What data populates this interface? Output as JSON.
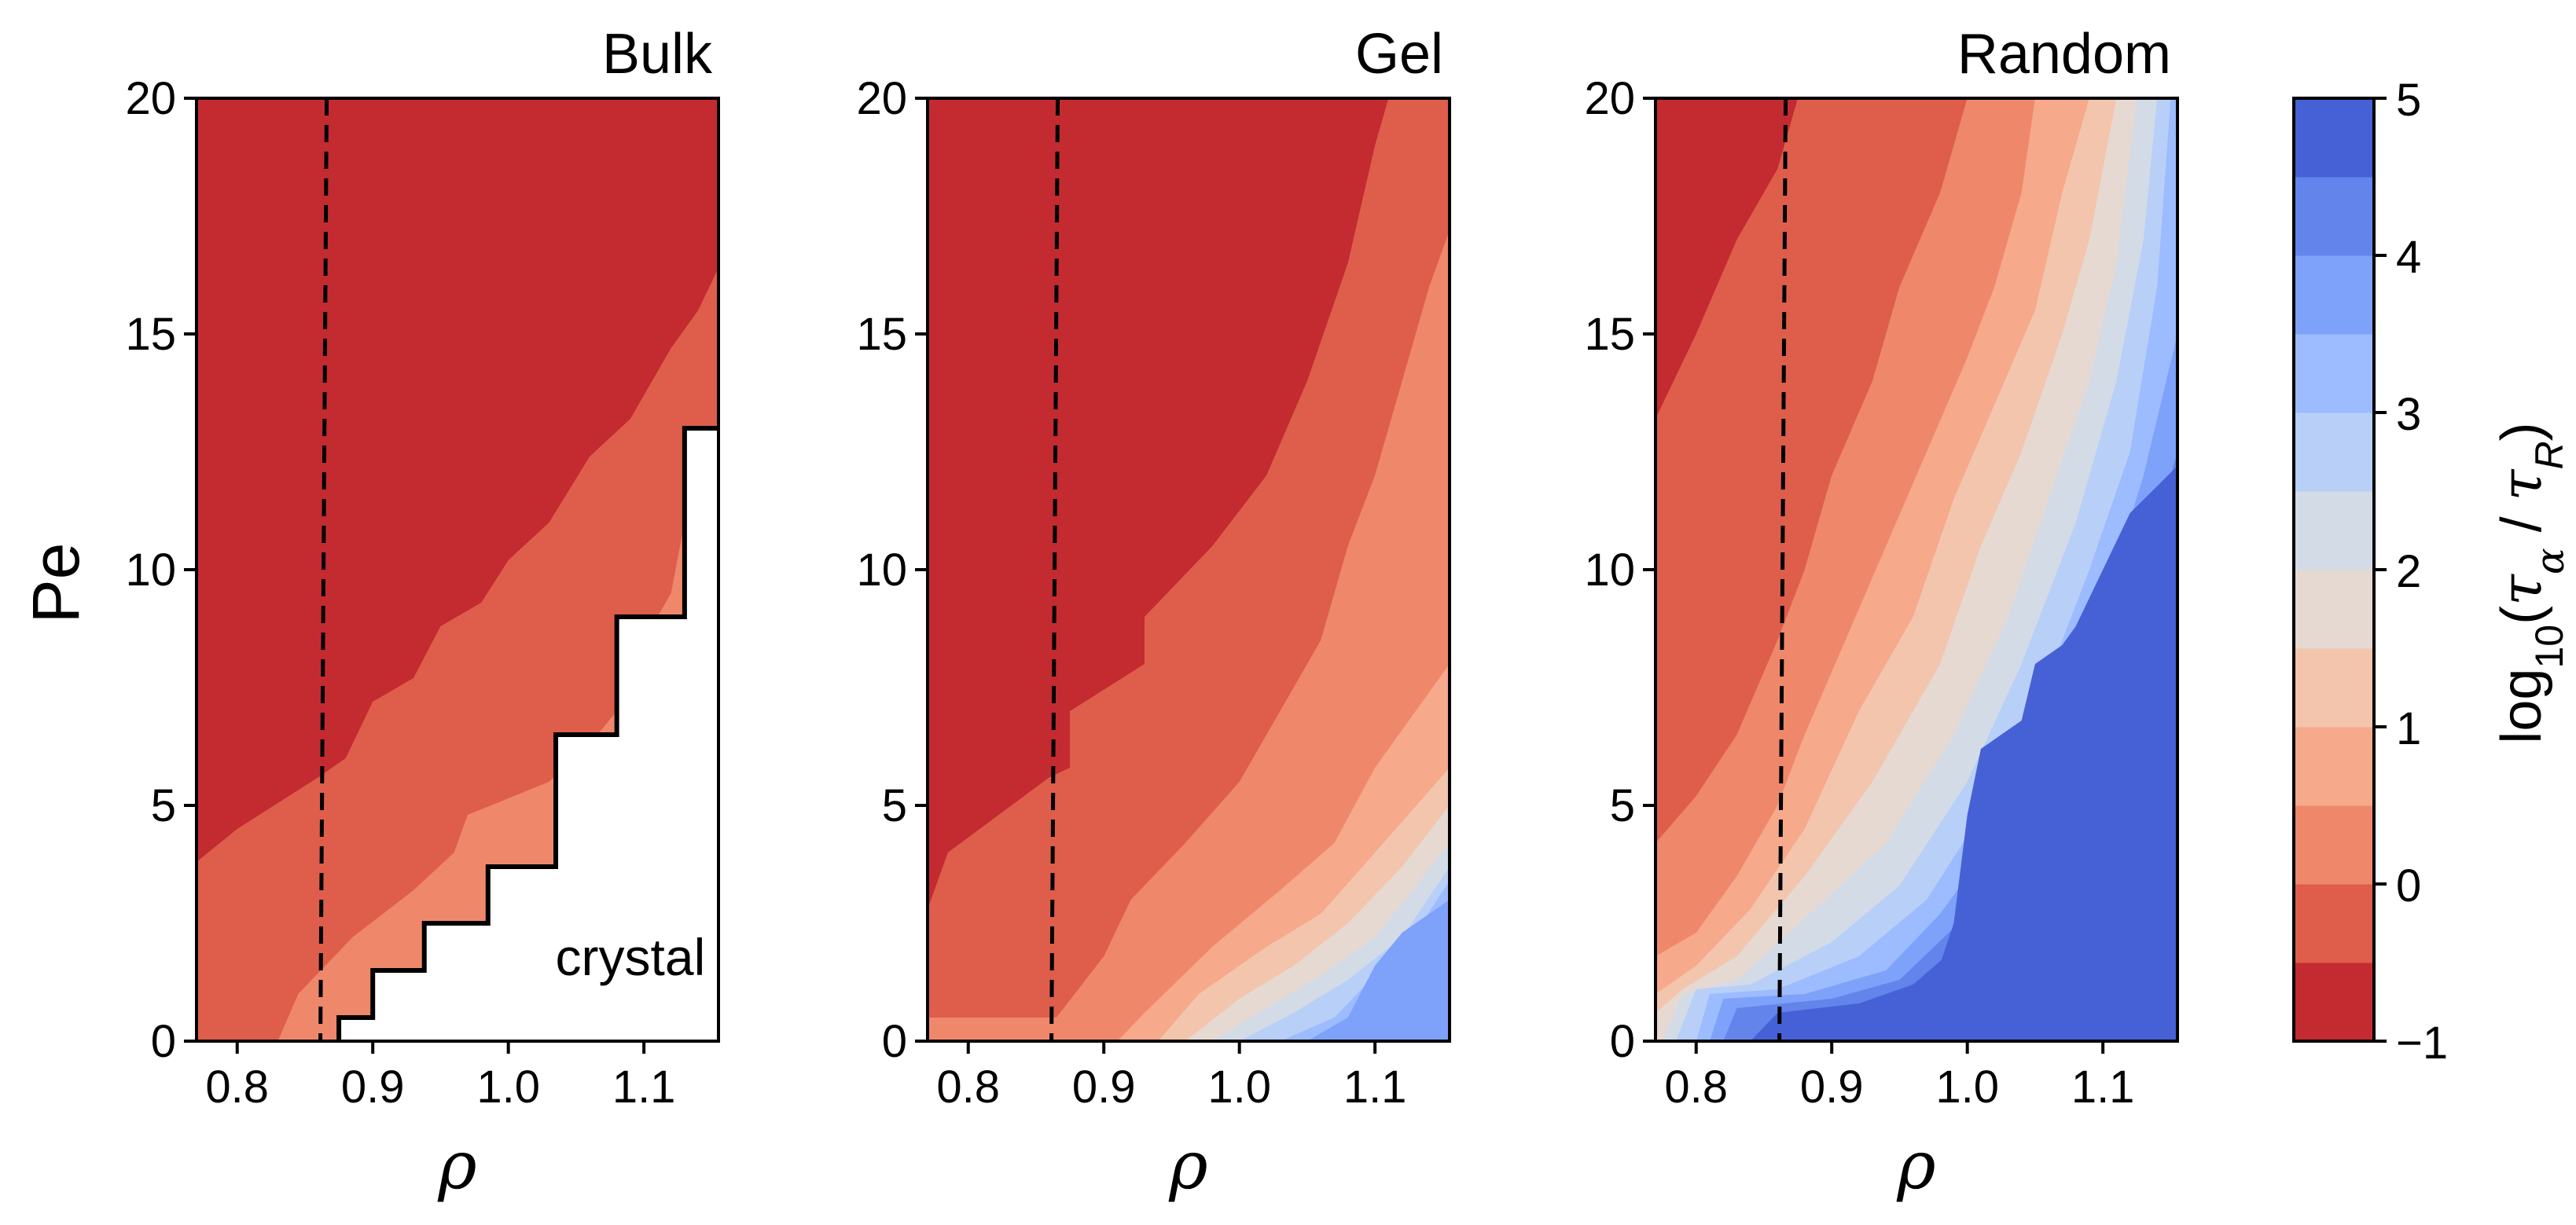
{
  "chart_data": {
    "type": "contour",
    "ylabel": "Pe",
    "xlabel": "ρ",
    "xlim": [
      0.77,
      1.155
    ],
    "ylim": [
      0,
      20
    ],
    "xticks": [
      "0.8",
      "0.9",
      "1.0",
      "1.1"
    ],
    "xtick_values": [
      0.8,
      0.9,
      1.0,
      1.1
    ],
    "yticks": [
      "0",
      "5",
      "10",
      "15",
      "20"
    ],
    "ytick_values": [
      0,
      5,
      10,
      15,
      20
    ],
    "dashed_line_rho": 0.866,
    "colorbar": {
      "label_text": "log10(τα / τR)",
      "ticks": [
        "−1",
        "0",
        "1",
        "2",
        "3",
        "4",
        "5"
      ],
      "tick_values": [
        -1,
        0,
        1,
        2,
        3,
        4,
        5
      ],
      "levels": [
        -1,
        -0.5,
        0,
        0.5,
        1,
        1.5,
        2,
        2.5,
        3,
        3.5,
        4,
        4.5,
        5
      ],
      "colors": [
        "#c32b30",
        "#de5e4b",
        "#ef886b",
        "#f6a98b",
        "#f3c5ad",
        "#e6d9d2",
        "#d3dbe7",
        "#b8cff8",
        "#9cbcff",
        "#7ea1fa",
        "#6384eb",
        "#4661d6"
      ]
    },
    "panels": [
      {
        "title": "Bulk",
        "annotation": "crystal",
        "crystal_boundary": [
          [
            0.875,
            0
          ],
          [
            0.875,
            0.5
          ],
          [
            0.9,
            0.5
          ],
          [
            0.9,
            1.5
          ],
          [
            0.938,
            1.5
          ],
          [
            0.938,
            2.5
          ],
          [
            0.985,
            2.5
          ],
          [
            0.985,
            3.7
          ],
          [
            1.035,
            3.7
          ],
          [
            1.035,
            6.5
          ],
          [
            1.08,
            6.5
          ],
          [
            1.08,
            9.0
          ],
          [
            1.13,
            9.0
          ],
          [
            1.13,
            13.0
          ],
          [
            1.155,
            13.0
          ]
        ],
        "boundaries": [
          [
            [
              0.77,
              3.8
            ],
            [
              0.8,
              4.5
            ],
            [
              0.86,
              5.6
            ],
            [
              0.88,
              6.0
            ],
            [
              0.9,
              7.2
            ],
            [
              0.93,
              7.7
            ],
            [
              0.95,
              8.8
            ],
            [
              0.98,
              9.3
            ],
            [
              1.0,
              10.2
            ],
            [
              1.03,
              11.0
            ],
            [
              1.06,
              12.4
            ],
            [
              1.09,
              13.2
            ],
            [
              1.12,
              14.7
            ],
            [
              1.14,
              15.5
            ],
            [
              1.155,
              16.4
            ]
          ],
          [
            [
              0.83,
              0
            ],
            [
              0.845,
              1.0
            ],
            [
              0.885,
              2.2
            ],
            [
              0.93,
              3.2
            ],
            [
              0.96,
              4.0
            ],
            [
              0.97,
              4.8
            ],
            [
              1.03,
              5.5
            ],
            [
              1.06,
              6.3
            ],
            [
              1.08,
              7.0
            ],
            [
              1.1,
              8.5
            ],
            [
              1.12,
              9.5
            ],
            [
              1.13,
              11.0
            ]
          ]
        ]
      },
      {
        "title": "Gel",
        "annotation": "",
        "boundaries": [
          [
            [
              0.77,
              2.8
            ],
            [
              0.785,
              4.0
            ],
            [
              0.86,
              5.6
            ],
            [
              0.875,
              5.8
            ],
            [
              0.875,
              7.0
            ],
            [
              0.93,
              8.0
            ],
            [
              0.93,
              9.0
            ],
            [
              0.98,
              10.5
            ],
            [
              1.02,
              12.0
            ],
            [
              1.05,
              14.0
            ],
            [
              1.08,
              16.5
            ],
            [
              1.1,
              19.0
            ],
            [
              1.11,
              20.0
            ]
          ],
          [
            [
              0.865,
              0.5
            ],
            [
              0.9,
              1.8
            ],
            [
              0.92,
              3.0
            ],
            [
              0.96,
              4.2
            ],
            [
              1.0,
              5.5
            ],
            [
              1.03,
              7.0
            ],
            [
              1.06,
              8.5
            ],
            [
              1.08,
              10.5
            ],
            [
              1.1,
              12.0
            ],
            [
              1.12,
              14.0
            ],
            [
              1.14,
              16.0
            ],
            [
              1.155,
              17.2
            ]
          ],
          [
            [
              0.91,
              0
            ],
            [
              0.93,
              0.6
            ],
            [
              0.98,
              2.0
            ],
            [
              1.03,
              3.2
            ],
            [
              1.07,
              4.2
            ],
            [
              1.1,
              5.8
            ],
            [
              1.155,
              8.0
            ]
          ],
          [
            [
              0.94,
              0
            ],
            [
              0.97,
              1.0
            ],
            [
              1.02,
              2.0
            ],
            [
              1.06,
              2.7
            ],
            [
              1.1,
              4.0
            ],
            [
              1.155,
              5.8
            ]
          ],
          [
            [
              0.96,
              0
            ],
            [
              1.0,
              0.9
            ],
            [
              1.04,
              1.6
            ],
            [
              1.08,
              2.5
            ],
            [
              1.12,
              3.7
            ],
            [
              1.155,
              5.0
            ]
          ],
          [
            [
              0.98,
              0
            ],
            [
              1.02,
              0.7
            ],
            [
              1.06,
              1.4
            ],
            [
              1.1,
              2.2
            ],
            [
              1.155,
              4.2
            ]
          ],
          [
            [
              1.0,
              0
            ],
            [
              1.04,
              0.6
            ],
            [
              1.08,
              1.3
            ],
            [
              1.12,
              2.2
            ],
            [
              1.155,
              3.7
            ]
          ],
          [
            [
              1.03,
              0
            ],
            [
              1.07,
              0.5
            ],
            [
              1.1,
              1.4
            ],
            [
              1.13,
              2.3
            ],
            [
              1.155,
              3.4
            ]
          ],
          [
            [
              1.05,
              0
            ],
            [
              1.08,
              0.5
            ],
            [
              1.1,
              1.6
            ],
            [
              1.12,
              2.3
            ],
            [
              1.155,
              3.0
            ]
          ]
        ]
      },
      {
        "title": "Random",
        "annotation": "",
        "boundaries": [
          [
            [
              0.77,
              13.2
            ],
            [
              0.8,
              15.0
            ],
            [
              0.83,
              17.0
            ],
            [
              0.86,
              18.5
            ],
            [
              0.875,
              20.0
            ]
          ],
          [
            [
              0.77,
              4.2
            ],
            [
              0.8,
              5.2
            ],
            [
              0.83,
              6.5
            ],
            [
              0.86,
              8.5
            ],
            [
              0.88,
              10.0
            ],
            [
              0.9,
              12.0
            ],
            [
              0.93,
              14.0
            ],
            [
              0.95,
              16.0
            ],
            [
              0.98,
              18.0
            ],
            [
              1.0,
              20.0
            ]
          ],
          [
            [
              0.77,
              1.8
            ],
            [
              0.8,
              2.3
            ],
            [
              0.83,
              3.5
            ],
            [
              0.86,
              5.0
            ],
            [
              0.88,
              6.5
            ],
            [
              0.91,
              8.5
            ],
            [
              0.94,
              10.5
            ],
            [
              0.97,
              12.5
            ],
            [
              1.0,
              14.5
            ],
            [
              1.02,
              16.0
            ],
            [
              1.04,
              18.0
            ],
            [
              1.05,
              20.0
            ]
          ],
          [
            [
              0.77,
              1.0
            ],
            [
              0.8,
              1.6
            ],
            [
              0.84,
              2.8
            ],
            [
              0.88,
              4.5
            ],
            [
              0.92,
              7.0
            ],
            [
              0.96,
              9.0
            ],
            [
              0.99,
              11.5
            ],
            [
              1.02,
              13.5
            ],
            [
              1.05,
              15.5
            ],
            [
              1.07,
              18.0
            ],
            [
              1.09,
              20.0
            ]
          ],
          [
            [
              0.77,
              0.6
            ],
            [
              0.79,
              1.1
            ],
            [
              0.83,
              1.8
            ],
            [
              0.88,
              3.5
            ],
            [
              0.93,
              5.5
            ],
            [
              0.98,
              8.0
            ],
            [
              1.01,
              10.5
            ],
            [
              1.04,
              12.5
            ],
            [
              1.07,
              15.0
            ],
            [
              1.09,
              17.0
            ],
            [
              1.11,
              20.0
            ]
          ],
          [
            [
              0.775,
              0
            ],
            [
              0.79,
              1.0
            ],
            [
              0.83,
              1.3
            ],
            [
              0.88,
              2.6
            ],
            [
              0.94,
              4.2
            ],
            [
              0.99,
              6.5
            ],
            [
              1.03,
              9.0
            ],
            [
              1.06,
              11.5
            ],
            [
              1.09,
              14.0
            ],
            [
              1.11,
              16.5
            ],
            [
              1.125,
              20.0
            ]
          ],
          [
            [
              0.785,
              0
            ],
            [
              0.8,
              1.1
            ],
            [
              0.84,
              1.2
            ],
            [
              0.9,
              2.1
            ],
            [
              0.95,
              3.3
            ],
            [
              1.0,
              5.5
            ],
            [
              1.04,
              8.0
            ],
            [
              1.08,
              11.0
            ],
            [
              1.11,
              14.0
            ],
            [
              1.13,
              17.0
            ],
            [
              1.14,
              20.0
            ]
          ],
          [
            [
              0.8,
              0
            ],
            [
              0.81,
              1.0
            ],
            [
              0.86,
              1.1
            ],
            [
              0.92,
              1.8
            ],
            [
              0.97,
              3.0
            ],
            [
              1.01,
              4.8
            ],
            [
              1.05,
              7.0
            ],
            [
              1.09,
              10.0
            ],
            [
              1.12,
              12.5
            ],
            [
              1.14,
              16.0
            ],
            [
              1.15,
              20.0
            ]
          ],
          [
            [
              0.81,
              0
            ],
            [
              0.82,
              0.9
            ],
            [
              0.88,
              1.0
            ],
            [
              0.94,
              1.5
            ],
            [
              0.98,
              2.7
            ],
            [
              1.02,
              4.3
            ],
            [
              1.06,
              6.2
            ],
            [
              1.1,
              9.2
            ],
            [
              1.13,
              12.0
            ],
            [
              1.155,
              15.0
            ]
          ],
          [
            [
              0.82,
              0
            ],
            [
              0.83,
              0.7
            ],
            [
              0.9,
              0.9
            ],
            [
              0.95,
              1.3
            ],
            [
              0.99,
              2.4
            ],
            [
              1.03,
              3.9
            ],
            [
              1.07,
              5.6
            ],
            [
              1.11,
              8.5
            ],
            [
              1.14,
              11.0
            ],
            [
              1.155,
              12.5
            ]
          ],
          [
            [
              0.84,
              0
            ],
            [
              0.86,
              0.6
            ],
            [
              0.92,
              0.8
            ],
            [
              0.96,
              1.2
            ],
            [
              1.0,
              2.2
            ],
            [
              1.04,
              3.5
            ],
            [
              1.08,
              5.0
            ],
            [
              1.12,
              7.5
            ],
            [
              1.155,
              9.8
            ]
          ],
          [
            [
              0.975,
              0
            ],
            [
              0.975,
              1.2
            ],
            [
              0.99,
              2.5
            ],
            [
              1.0,
              4.8
            ],
            [
              1.01,
              6.2
            ],
            [
              1.04,
              6.8
            ],
            [
              1.05,
              8.0
            ],
            [
              1.07,
              8.4
            ],
            [
              1.08,
              8.8
            ],
            [
              1.1,
              10.0
            ],
            [
              1.12,
              11.2
            ],
            [
              1.155,
              12.2
            ]
          ]
        ]
      }
    ]
  }
}
